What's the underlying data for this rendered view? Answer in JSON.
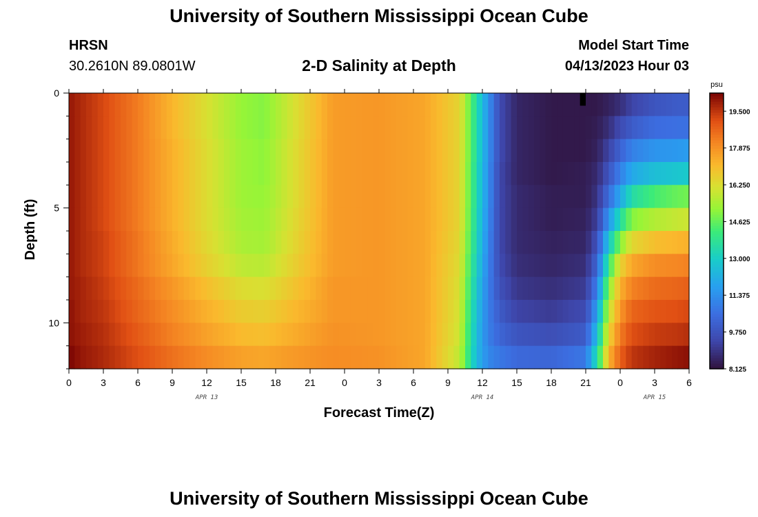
{
  "header": {
    "title": "University of Southern Mississippi Ocean Cube",
    "station": "HRSN",
    "coordinates": "30.2610N  89.0801W",
    "subtitle": "2-D Salinity at Depth",
    "model_start_label": "Model Start Time",
    "model_start_value": "04/13/2023 Hour 03"
  },
  "footer": {
    "title": "University of Southern Mississippi Ocean Cube"
  },
  "chart_data": {
    "type": "heatmap",
    "title": "2-D Salinity at Depth",
    "xlabel": "Forecast Time(Z)",
    "ylabel": "Depth (ft)",
    "x_range_hours": [
      0,
      54
    ],
    "y_range_ft": [
      0,
      12
    ],
    "y_inverted": true,
    "x_tick_labels": [
      "0",
      "3",
      "6",
      "9",
      "12",
      "15",
      "18",
      "21",
      "0",
      "3",
      "6",
      "9",
      "12",
      "15",
      "18",
      "21",
      "0",
      "3",
      "6"
    ],
    "y_ticks": [
      0,
      5,
      10
    ],
    "date_labels": [
      {
        "text": "APR 13",
        "hour": 12
      },
      {
        "text": "APR 14",
        "hour": 36
      },
      {
        "text": "APR 15",
        "hour": 51
      }
    ],
    "colorbar": {
      "unit": "psu",
      "min": 8.125,
      "max": 20.3,
      "tick_labels": [
        "19.500",
        "17.875",
        "16.250",
        "14.625",
        "13.000",
        "11.375",
        "9.750",
        "8.125"
      ],
      "tick_values": [
        19.5,
        17.875,
        16.25,
        14.625,
        13.0,
        11.375,
        9.75,
        8.125
      ]
    },
    "depth_layers_ft": [
      0.5,
      1.5,
      2.5,
      3.5,
      4.5,
      5.5,
      6.5,
      7.5,
      8.5,
      9.5,
      10.5,
      11.5
    ],
    "keyframe_hours": [
      0,
      1,
      3,
      6,
      9,
      12,
      15,
      17,
      19,
      23,
      27,
      31,
      34,
      35.5,
      36.5,
      37.5,
      39,
      42,
      45,
      46,
      47,
      48,
      49,
      51,
      53,
      54
    ],
    "salinity_psu": [
      [
        20.0,
        19.7,
        19.2,
        18.3,
        17.2,
        16.2,
        15.2,
        15.0,
        15.9,
        17.7,
        17.8,
        17.5,
        16.5,
        13.5,
        11.5,
        9.5,
        8.6,
        8.3,
        8.3,
        8.3,
        8.5,
        8.8,
        9.3,
        9.8,
        10.0,
        10.0
      ],
      [
        20.0,
        19.7,
        19.2,
        18.3,
        17.2,
        16.2,
        15.2,
        15.0,
        15.9,
        17.7,
        17.8,
        17.5,
        16.5,
        13.5,
        11.5,
        9.5,
        8.6,
        8.3,
        8.3,
        8.4,
        8.8,
        9.5,
        10.0,
        10.5,
        10.6,
        10.6
      ],
      [
        20.0,
        19.7,
        19.2,
        18.3,
        17.3,
        16.3,
        15.3,
        15.1,
        16.0,
        17.7,
        17.8,
        17.5,
        16.5,
        13.5,
        11.5,
        9.5,
        8.6,
        8.3,
        8.3,
        8.5,
        9.3,
        10.2,
        11.0,
        11.5,
        11.6,
        11.7
      ],
      [
        20.0,
        19.7,
        19.2,
        18.3,
        17.3,
        16.3,
        15.3,
        15.1,
        16.0,
        17.7,
        17.8,
        17.5,
        16.5,
        13.4,
        11.4,
        9.4,
        8.6,
        8.3,
        8.4,
        8.7,
        9.8,
        11.0,
        12.0,
        12.6,
        12.8,
        12.9
      ],
      [
        20.0,
        19.7,
        19.2,
        18.3,
        17.3,
        16.3,
        15.3,
        15.2,
        16.0,
        17.7,
        17.8,
        17.5,
        16.5,
        13.4,
        11.4,
        9.4,
        8.7,
        8.4,
        8.4,
        8.9,
        10.5,
        12.0,
        13.5,
        14.3,
        14.7,
        14.8
      ],
      [
        20.0,
        19.7,
        19.2,
        18.3,
        17.3,
        16.3,
        15.4,
        15.3,
        16.1,
        17.7,
        17.8,
        17.5,
        16.5,
        13.3,
        11.3,
        9.4,
        8.7,
        8.4,
        8.5,
        9.2,
        11.5,
        13.5,
        15.0,
        15.6,
        15.9,
        16.0
      ],
      [
        20.0,
        19.7,
        19.3,
        18.4,
        17.4,
        16.4,
        15.5,
        15.4,
        16.2,
        17.7,
        17.8,
        17.5,
        16.4,
        13.2,
        11.2,
        9.4,
        8.7,
        8.5,
        8.6,
        9.7,
        12.8,
        15.0,
        16.4,
        17.0,
        17.2,
        17.3
      ],
      [
        20.0,
        19.7,
        19.3,
        18.4,
        17.5,
        16.6,
        15.8,
        15.7,
        16.4,
        17.7,
        17.8,
        17.5,
        16.3,
        13.0,
        11.1,
        9.5,
        8.8,
        8.6,
        8.8,
        10.3,
        14.0,
        16.5,
        17.5,
        18.0,
        18.1,
        18.2
      ],
      [
        20.0,
        19.8,
        19.4,
        18.6,
        17.8,
        17.0,
        16.3,
        16.2,
        16.7,
        17.8,
        17.8,
        17.5,
        16.2,
        12.8,
        11.0,
        9.7,
        9.0,
        8.8,
        9.1,
        11.0,
        15.0,
        17.3,
        18.2,
        18.6,
        18.7,
        18.8
      ],
      [
        20.1,
        19.8,
        19.5,
        18.7,
        18.0,
        17.3,
        16.7,
        16.6,
        17.0,
        17.8,
        17.8,
        17.5,
        16.1,
        12.6,
        11.0,
        10.0,
        9.3,
        9.1,
        9.5,
        11.8,
        15.8,
        17.8,
        18.7,
        19.0,
        19.1,
        19.2
      ],
      [
        20.1,
        19.9,
        19.6,
        18.9,
        18.2,
        17.6,
        17.1,
        17.0,
        17.3,
        17.9,
        17.8,
        17.5,
        16.0,
        12.5,
        11.0,
        10.3,
        9.8,
        9.6,
        10.0,
        12.6,
        16.5,
        18.3,
        19.1,
        19.4,
        19.5,
        19.6
      ],
      [
        20.3,
        20.0,
        19.7,
        19.1,
        18.5,
        18.0,
        17.6,
        17.5,
        17.7,
        18.0,
        17.9,
        17.5,
        15.8,
        12.4,
        11.2,
        10.8,
        10.4,
        10.3,
        10.8,
        13.5,
        17.2,
        18.8,
        19.5,
        19.8,
        20.0,
        20.1
      ]
    ],
    "missing_cells": [
      {
        "hour": 44.5,
        "depth_layer": 0
      }
    ]
  }
}
